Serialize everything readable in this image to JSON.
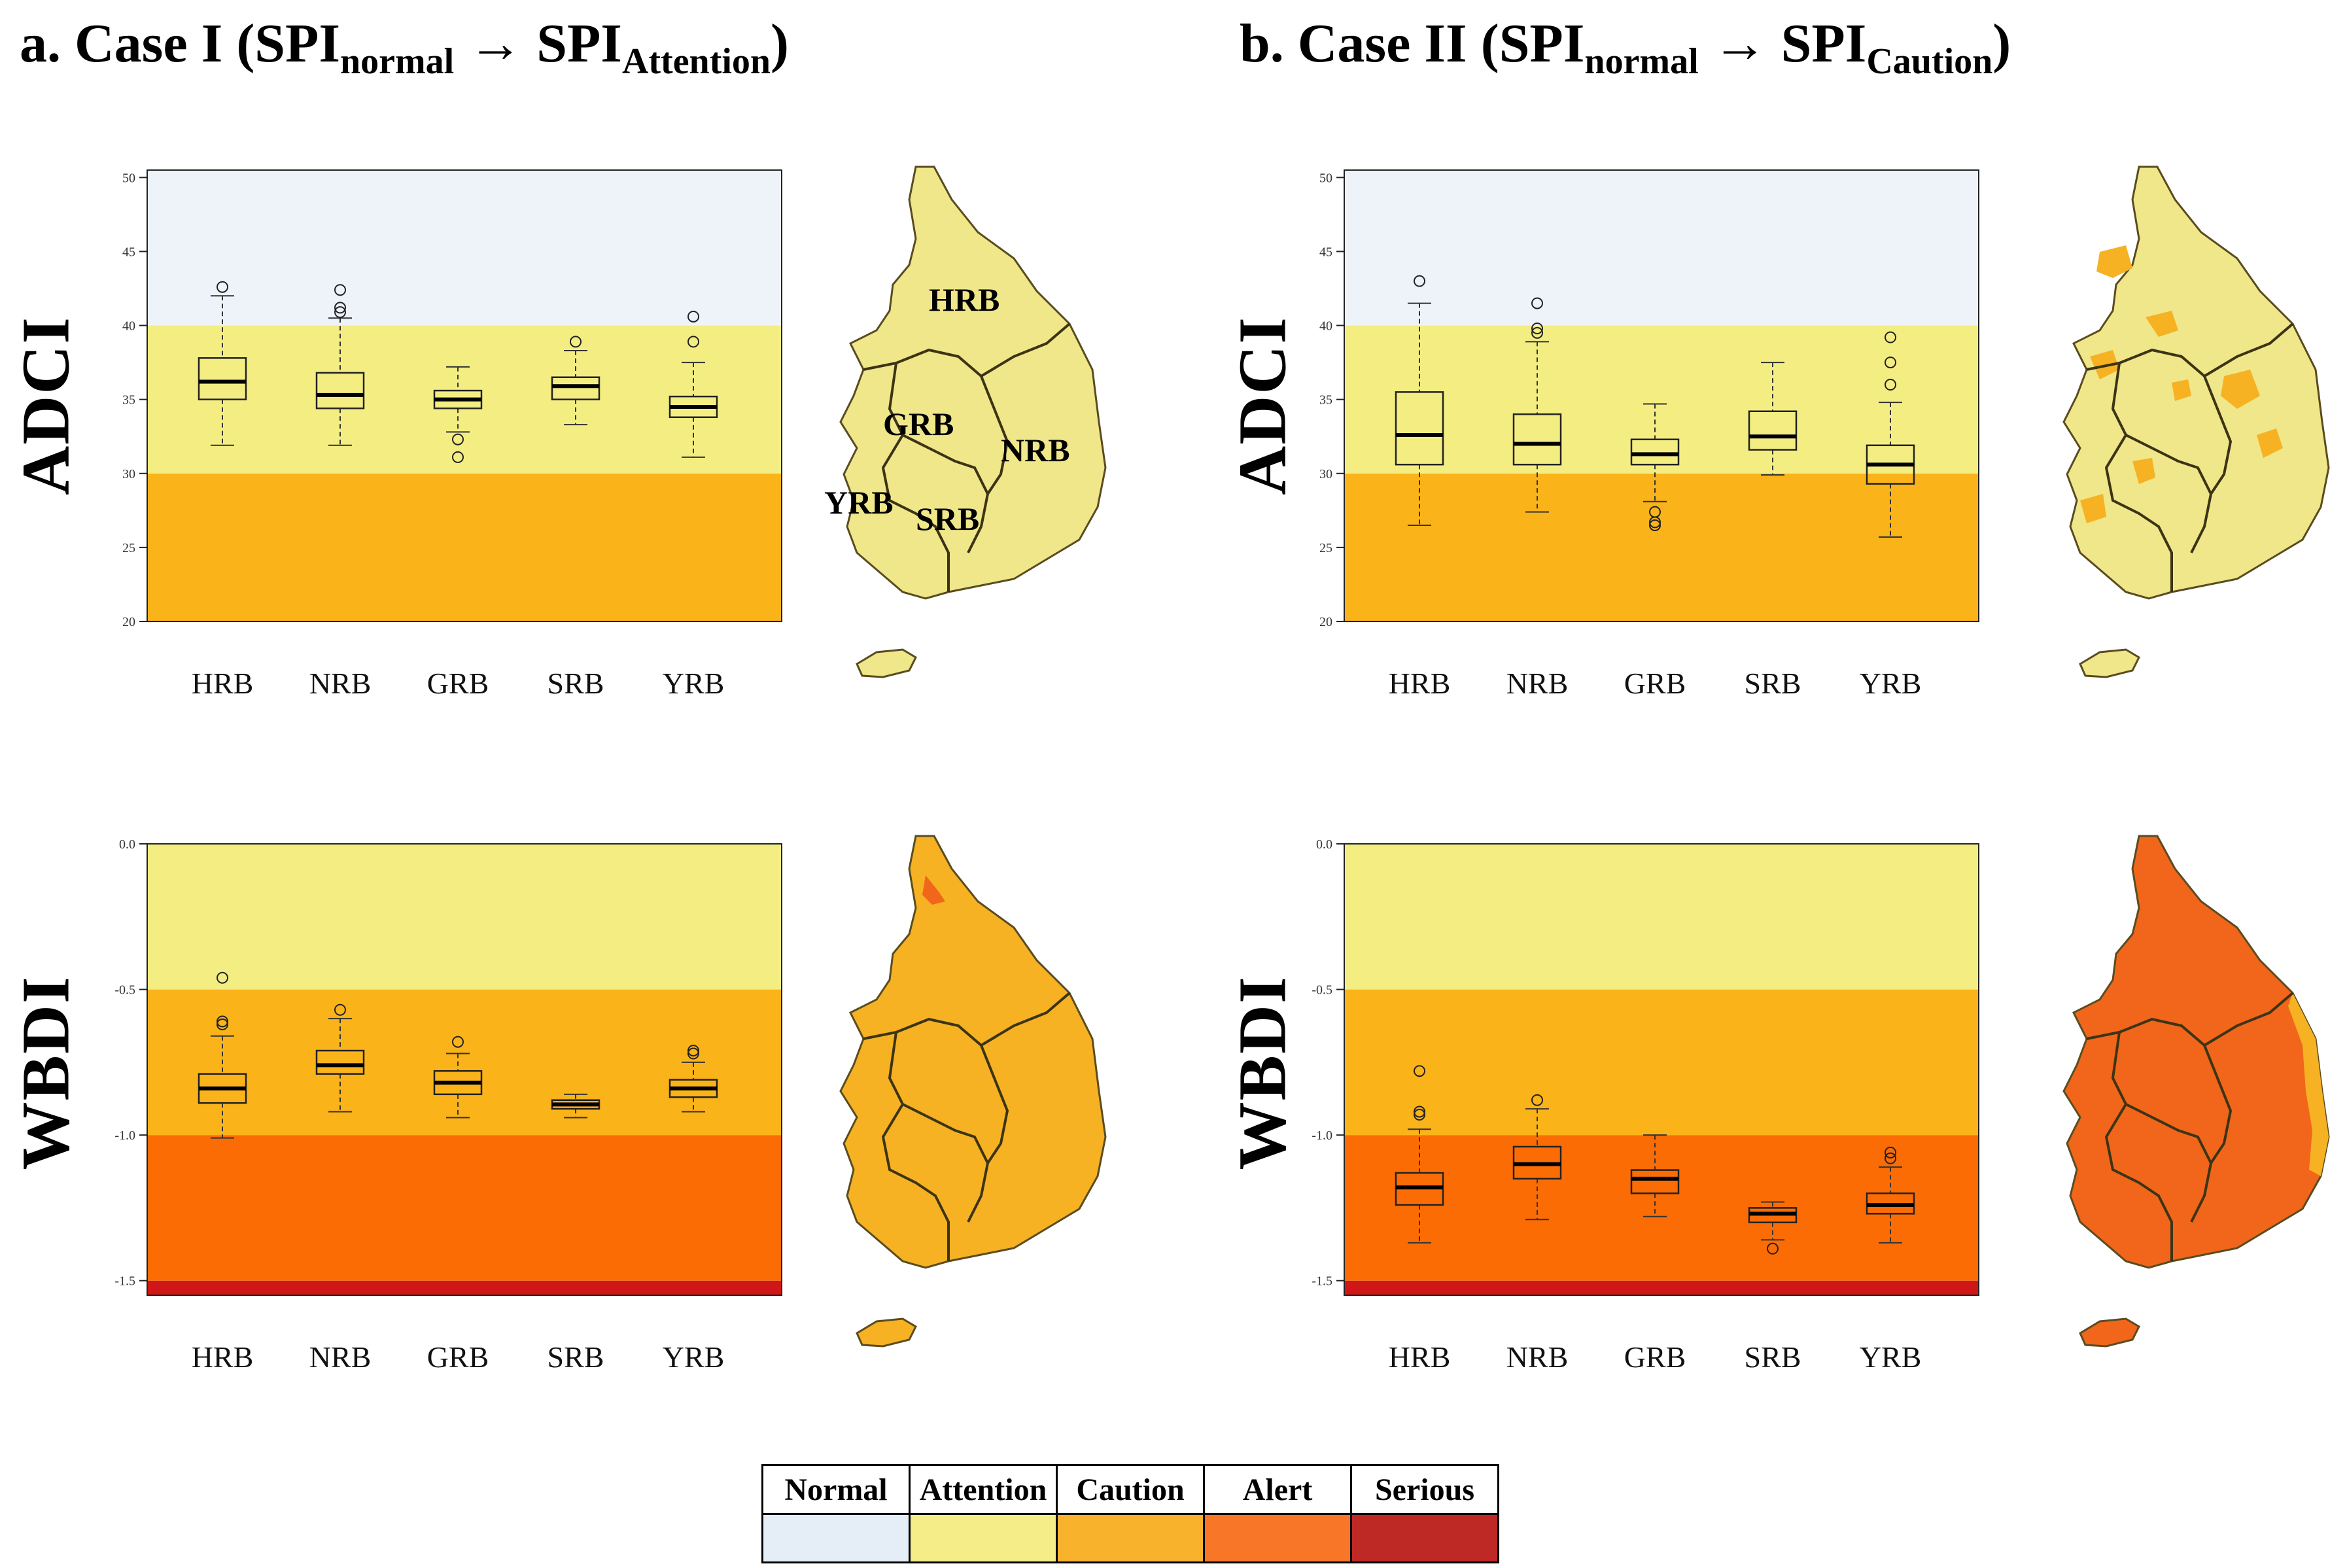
{
  "titles": {
    "a": {
      "prefix": "a. Case I (SPI",
      "sub1": "normal",
      "arrow": " → SPI",
      "sub2": "Attention",
      "suffix": ")"
    },
    "b": {
      "prefix": "b. Case II (SPI",
      "sub1": "normal",
      "arrow": " → SPI",
      "sub2": "Caution",
      "suffix": ")"
    }
  },
  "row_labels": {
    "adci": "ADCI",
    "wbdi": "WBDI"
  },
  "colors": {
    "normal": "#eef3fa",
    "attention": "#f4ee82",
    "caution": "#fbb31a",
    "alert": "#fb6c05",
    "serious": "#cf1717",
    "map_attention": "#efe78a",
    "map_caution": "#f6b223",
    "map_alert": "#f1661b",
    "map_line": "#7a6a2a"
  },
  "legend": [
    {
      "label": "Normal",
      "color": "#e5edf6"
    },
    {
      "label": "Attention",
      "color": "#f5ed87"
    },
    {
      "label": "Caution",
      "color": "#f9b22b"
    },
    {
      "label": "Alert",
      "color": "#f77628"
    },
    {
      "label": "Serious",
      "color": "#bf2925"
    }
  ],
  "maps": [
    {
      "panel": "a-adci",
      "fill": "attention",
      "labels": [
        "HRB",
        "GRB",
        "NRB",
        "YRB",
        "SRB"
      ]
    },
    {
      "panel": "a-wbdi",
      "fill": "caution",
      "labels": []
    },
    {
      "panel": "b-adci",
      "fill": "attention",
      "labels": []
    },
    {
      "panel": "b-wbdi",
      "fill": "alert",
      "labels": []
    }
  ],
  "chart_data": [
    {
      "id": "a-adci",
      "type": "boxplot",
      "title": "a. Case I (SPInormal → SPIAttention)",
      "ylabel": "ADCI",
      "categories": [
        "HRB",
        "NRB",
        "GRB",
        "SRB",
        "YRB"
      ],
      "ylim": [
        20,
        50.5
      ],
      "yticks": [
        20,
        25,
        30,
        35,
        40,
        45,
        50
      ],
      "bands": [
        {
          "from": 20,
          "to": 30,
          "level": "caution"
        },
        {
          "from": 30,
          "to": 40,
          "level": "attention"
        },
        {
          "from": 40,
          "to": 50.5,
          "level": "normal"
        }
      ],
      "boxes": [
        {
          "min": 31.9,
          "q1": 35.0,
          "median": 36.2,
          "q3": 37.8,
          "max": 42.0,
          "outliers": [
            42.6
          ]
        },
        {
          "min": 31.9,
          "q1": 34.4,
          "median": 35.3,
          "q3": 36.8,
          "max": 40.5,
          "outliers": [
            40.9,
            41.2,
            42.4
          ]
        },
        {
          "min": 32.8,
          "q1": 34.4,
          "median": 35.0,
          "q3": 35.6,
          "max": 37.2,
          "outliers": [
            32.3,
            31.1
          ]
        },
        {
          "min": 33.3,
          "q1": 35.0,
          "median": 35.9,
          "q3": 36.5,
          "max": 38.3,
          "outliers": [
            38.9
          ]
        },
        {
          "min": 31.1,
          "q1": 33.8,
          "median": 34.5,
          "q3": 35.2,
          "max": 37.5,
          "outliers": [
            38.9,
            40.6
          ]
        }
      ]
    },
    {
      "id": "b-adci",
      "type": "boxplot",
      "title": "b. Case II (SPInormal → SPICaution)",
      "ylabel": "ADCI",
      "categories": [
        "HRB",
        "NRB",
        "GRB",
        "SRB",
        "YRB"
      ],
      "ylim": [
        20,
        50.5
      ],
      "yticks": [
        20,
        25,
        30,
        35,
        40,
        45,
        50
      ],
      "bands": [
        {
          "from": 20,
          "to": 30,
          "level": "caution"
        },
        {
          "from": 30,
          "to": 40,
          "level": "attention"
        },
        {
          "from": 40,
          "to": 50.5,
          "level": "normal"
        }
      ],
      "boxes": [
        {
          "min": 26.5,
          "q1": 30.6,
          "median": 32.6,
          "q3": 35.5,
          "max": 41.5,
          "outliers": [
            43.0
          ]
        },
        {
          "min": 27.4,
          "q1": 30.6,
          "median": 32.0,
          "q3": 34.0,
          "max": 38.9,
          "outliers": [
            39.5,
            39.8,
            41.5
          ]
        },
        {
          "min": 28.1,
          "q1": 30.6,
          "median": 31.3,
          "q3": 32.3,
          "max": 34.7,
          "outliers": [
            27.4,
            26.7,
            26.5
          ]
        },
        {
          "min": 29.9,
          "q1": 31.6,
          "median": 32.5,
          "q3": 34.2,
          "max": 37.5,
          "outliers": []
        },
        {
          "min": 25.7,
          "q1": 29.3,
          "median": 30.6,
          "q3": 31.9,
          "max": 34.8,
          "outliers": [
            36.0,
            37.5,
            39.2
          ]
        }
      ]
    },
    {
      "id": "a-wbdi",
      "type": "boxplot",
      "title": "a. Case I (SPInormal → SPIAttention)",
      "ylabel": "WBDI",
      "categories": [
        "HRB",
        "NRB",
        "GRB",
        "SRB",
        "YRB"
      ],
      "ylim": [
        -1.55,
        0.0
      ],
      "yticks": [
        -1.5,
        -1.0,
        -0.5,
        0.0
      ],
      "bands": [
        {
          "from": -1.55,
          "to": -1.5,
          "level": "serious"
        },
        {
          "from": -1.5,
          "to": -1.0,
          "level": "alert"
        },
        {
          "from": -1.0,
          "to": -0.5,
          "level": "caution"
        },
        {
          "from": -0.5,
          "to": 0.0,
          "level": "attention"
        }
      ],
      "boxes": [
        {
          "min": -1.01,
          "q1": -0.89,
          "median": -0.84,
          "q3": -0.79,
          "max": -0.66,
          "outliers": [
            -0.61,
            -0.62,
            -0.46
          ]
        },
        {
          "min": -0.92,
          "q1": -0.79,
          "median": -0.76,
          "q3": -0.71,
          "max": -0.6,
          "outliers": [
            -0.57
          ]
        },
        {
          "min": -0.94,
          "q1": -0.86,
          "median": -0.82,
          "q3": -0.78,
          "max": -0.72,
          "outliers": [
            -0.68
          ]
        },
        {
          "min": -0.94,
          "q1": -0.91,
          "median": -0.895,
          "q3": -0.88,
          "max": -0.86,
          "outliers": []
        },
        {
          "min": -0.92,
          "q1": -0.87,
          "median": -0.84,
          "q3": -0.81,
          "max": -0.75,
          "outliers": [
            -0.71,
            -0.72
          ]
        }
      ]
    },
    {
      "id": "b-wbdi",
      "type": "boxplot",
      "title": "b. Case II (SPInormal → SPICaution)",
      "ylabel": "WBDI",
      "categories": [
        "HRB",
        "NRB",
        "GRB",
        "SRB",
        "YRB"
      ],
      "ylim": [
        -1.55,
        0.0
      ],
      "yticks": [
        -1.5,
        -1.0,
        -0.5,
        0.0
      ],
      "bands": [
        {
          "from": -1.55,
          "to": -1.5,
          "level": "serious"
        },
        {
          "from": -1.5,
          "to": -1.0,
          "level": "alert"
        },
        {
          "from": -1.0,
          "to": -0.5,
          "level": "caution"
        },
        {
          "from": -0.5,
          "to": 0.0,
          "level": "attention"
        }
      ],
      "boxes": [
        {
          "min": -1.37,
          "q1": -1.24,
          "median": -1.18,
          "q3": -1.13,
          "max": -0.98,
          "outliers": [
            -0.92,
            -0.93,
            -0.78
          ]
        },
        {
          "min": -1.29,
          "q1": -1.15,
          "median": -1.1,
          "q3": -1.04,
          "max": -0.91,
          "outliers": [
            -0.88
          ]
        },
        {
          "min": -1.28,
          "q1": -1.2,
          "median": -1.15,
          "q3": -1.12,
          "max": -1.0,
          "outliers": []
        },
        {
          "min": -1.36,
          "q1": -1.3,
          "median": -1.27,
          "q3": -1.25,
          "max": -1.23,
          "outliers": [
            -1.39
          ]
        },
        {
          "min": -1.37,
          "q1": -1.27,
          "median": -1.24,
          "q3": -1.2,
          "max": -1.11,
          "outliers": [
            -1.06,
            -1.08
          ]
        }
      ]
    }
  ]
}
